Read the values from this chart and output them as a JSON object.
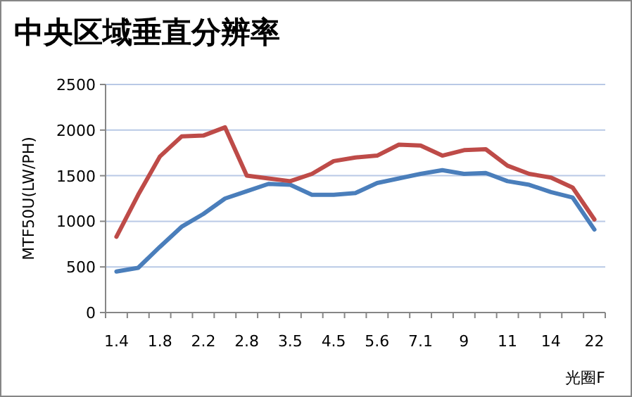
{
  "chart_data": {
    "type": "line",
    "title": "中央区域垂直分辨率",
    "ylabel": "MTF50U(LW/PH)",
    "xlabel": "光圈F",
    "categories": [
      "1.4",
      null,
      "1.8",
      null,
      "2.2",
      null,
      "2.8",
      null,
      "3.5",
      null,
      "4.5",
      null,
      "5.6",
      null,
      "7.1",
      null,
      "9",
      null,
      "11",
      null,
      "14",
      null,
      "22"
    ],
    "series": [
      {
        "color": "#4a7ebb",
        "values": [
          450,
          490,
          720,
          940,
          1080,
          1250,
          1330,
          1410,
          1400,
          1290,
          1290,
          1310,
          1420,
          1470,
          1520,
          1560,
          1520,
          1530,
          1440,
          1400,
          1320,
          1260,
          910
        ]
      },
      {
        "color": "#be4b48",
        "values": [
          830,
          1290,
          1710,
          1930,
          1940,
          2030,
          1500,
          1470,
          1440,
          1520,
          1660,
          1700,
          1720,
          1840,
          1830,
          1720,
          1780,
          1790,
          1610,
          1520,
          1480,
          1370,
          1020
        ]
      }
    ],
    "ylim": [
      0,
      2500
    ],
    "yticks": [
      0,
      500,
      1000,
      1500,
      2000,
      2500
    ],
    "grid": "y",
    "line_style": "solid",
    "marker": "none"
  }
}
